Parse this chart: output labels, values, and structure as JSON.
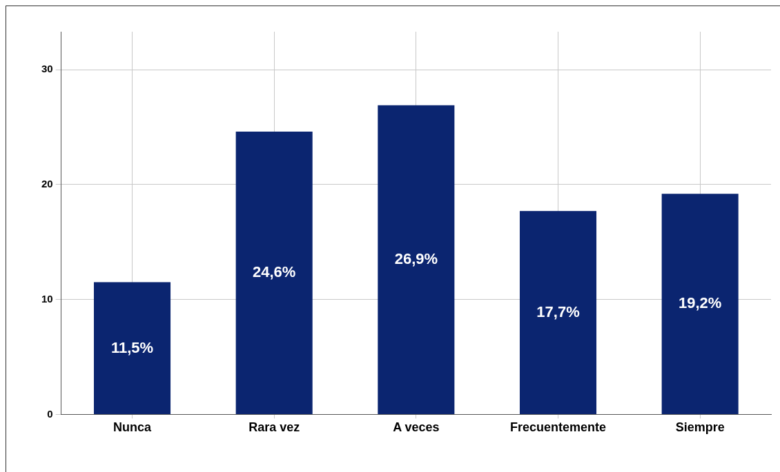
{
  "chart_data": {
    "type": "bar",
    "categories": [
      "Nunca",
      "Rara vez",
      "A veces",
      "Frecuentemente",
      "Siempre"
    ],
    "values": [
      11.5,
      24.6,
      26.9,
      17.7,
      19.2
    ],
    "value_labels": [
      "11,5%",
      "24,6%",
      "26,9%",
      "17,7%",
      "19,2%"
    ],
    "color": "#0b2570",
    "ylim": [
      0,
      33.3
    ],
    "yticks": [
      0,
      10,
      20,
      30
    ],
    "grid": true,
    "legend": false
  }
}
